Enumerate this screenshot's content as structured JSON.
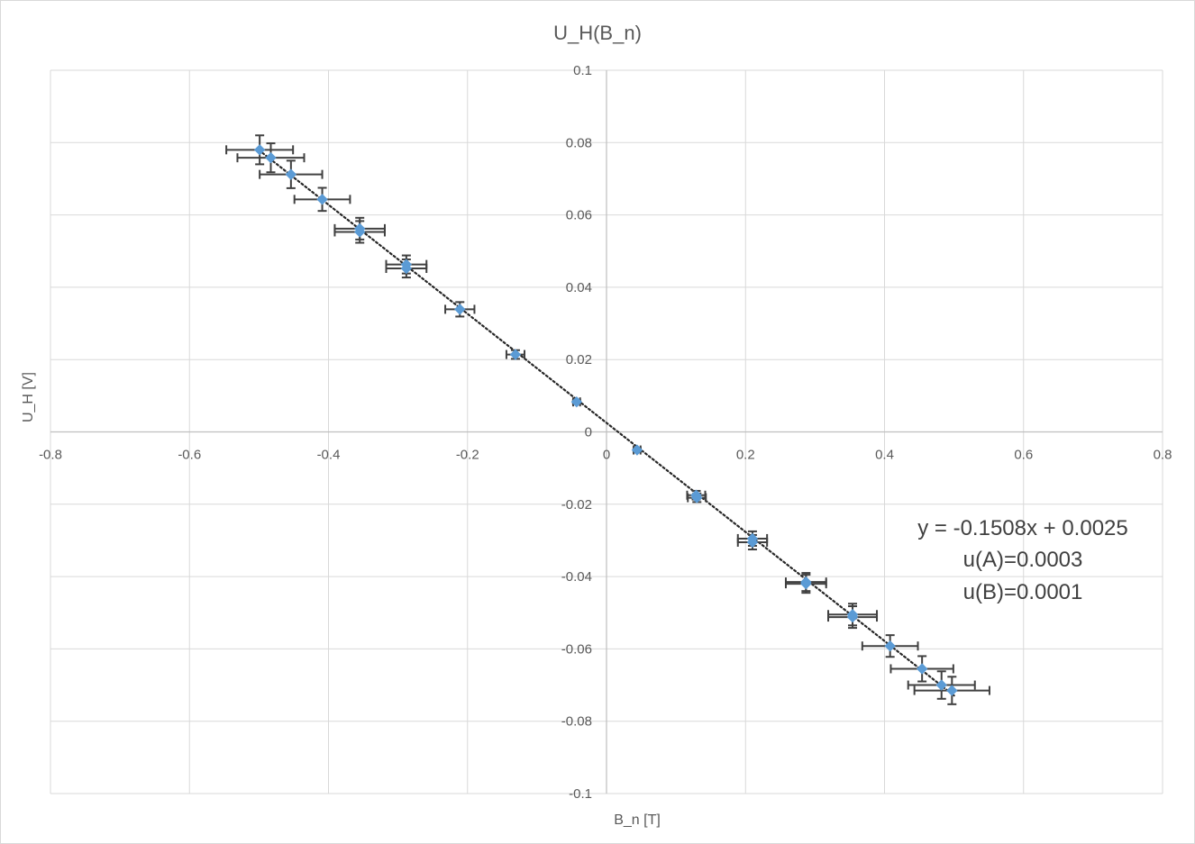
{
  "chart_data": {
    "type": "scatter",
    "title": "U_H(B_n)",
    "xlabel": "B_n [T]",
    "ylabel": "U_H [V]",
    "xlim": [
      -0.8,
      0.8
    ],
    "ylim": [
      -0.1,
      0.1
    ],
    "x_ticks": [
      "-0.8",
      "-0.6",
      "-0.4",
      "-0.2",
      "0",
      "0.2",
      "0.4",
      "0.6",
      "0.8"
    ],
    "y_ticks": [
      "0.1",
      "0.08",
      "0.06",
      "0.04",
      "0.02",
      "0",
      "-0.02",
      "-0.04",
      "-0.06",
      "-0.08",
      "-0.1"
    ],
    "grid": true,
    "marker_color": "#5B9BD5",
    "errorbar_color": "#404040",
    "points": [
      {
        "x": -0.499,
        "y": 0.078,
        "xerr": 0.048,
        "yerr": 0.004
      },
      {
        "x": -0.483,
        "y": 0.0758,
        "xerr": 0.048,
        "yerr": 0.004
      },
      {
        "x": -0.454,
        "y": 0.0712,
        "xerr": 0.045,
        "yerr": 0.0038
      },
      {
        "x": -0.409,
        "y": 0.0643,
        "xerr": 0.04,
        "yerr": 0.0032
      },
      {
        "x": -0.355,
        "y": 0.0562,
        "xerr": 0.036,
        "yerr": 0.003
      },
      {
        "x": -0.355,
        "y": 0.0553,
        "xerr": 0.036,
        "yerr": 0.003
      },
      {
        "x": -0.288,
        "y": 0.0463,
        "xerr": 0.029,
        "yerr": 0.0025
      },
      {
        "x": -0.288,
        "y": 0.0452,
        "xerr": 0.029,
        "yerr": 0.0025
      },
      {
        "x": -0.211,
        "y": 0.0339,
        "xerr": 0.021,
        "yerr": 0.002
      },
      {
        "x": -0.131,
        "y": 0.0214,
        "xerr": 0.013,
        "yerr": 0.0012
      },
      {
        "x": -0.043,
        "y": 0.0083,
        "xerr": 0.005,
        "yerr": 0.0005
      },
      {
        "x": 0.044,
        "y": -0.005,
        "xerr": 0.005,
        "yerr": 0.0005
      },
      {
        "x": 0.129,
        "y": -0.0175,
        "xerr": 0.013,
        "yerr": 0.0012
      },
      {
        "x": 0.13,
        "y": -0.0182,
        "xerr": 0.013,
        "yerr": 0.0012
      },
      {
        "x": 0.21,
        "y": -0.0295,
        "xerr": 0.021,
        "yerr": 0.002
      },
      {
        "x": 0.21,
        "y": -0.0305,
        "xerr": 0.021,
        "yerr": 0.002
      },
      {
        "x": 0.287,
        "y": -0.0415,
        "xerr": 0.029,
        "yerr": 0.0025
      },
      {
        "x": 0.287,
        "y": -0.042,
        "xerr": 0.029,
        "yerr": 0.0025
      },
      {
        "x": 0.354,
        "y": -0.0505,
        "xerr": 0.035,
        "yerr": 0.003
      },
      {
        "x": 0.354,
        "y": -0.0512,
        "xerr": 0.035,
        "yerr": 0.003
      },
      {
        "x": 0.408,
        "y": -0.0592,
        "xerr": 0.04,
        "yerr": 0.003
      },
      {
        "x": 0.454,
        "y": -0.0655,
        "xerr": 0.045,
        "yerr": 0.0035
      },
      {
        "x": 0.482,
        "y": -0.07,
        "xerr": 0.048,
        "yerr": 0.0038
      },
      {
        "x": 0.497,
        "y": -0.0715,
        "xerr": 0.054,
        "yerr": 0.0038
      }
    ],
    "trendline": {
      "style": "dotted",
      "slope": -0.1508,
      "intercept": 0.0025,
      "x_range": [
        -0.5,
        0.5
      ]
    },
    "annotations": [
      "y = -0.1508x + 0.0025",
      "u(A)=0.0003",
      "u(B)=0.0001"
    ]
  }
}
